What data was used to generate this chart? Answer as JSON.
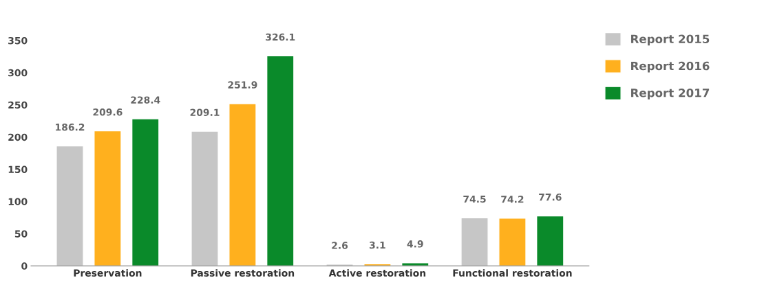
{
  "chart_data": {
    "type": "bar",
    "categories": [
      "Preservation",
      "Passive restoration",
      "Active restoration",
      "Functional restoration"
    ],
    "series": [
      {
        "name": "Report 2015",
        "color": "#c6c6c6",
        "values": [
          186.2,
          209.1,
          2.6,
          74.5
        ]
      },
      {
        "name": "Report 2016",
        "color": "#ffb01e",
        "values": [
          209.6,
          251.9,
          3.1,
          74.2
        ]
      },
      {
        "name": "Report 2017",
        "color": "#0a8a2a",
        "values": [
          228.4,
          326.1,
          4.9,
          77.6
        ]
      }
    ],
    "ylim": [
      0,
      350
    ],
    "yticks": [
      0,
      50,
      100,
      150,
      200,
      250,
      300,
      350
    ],
    "data_labels": true,
    "grid": false,
    "legend": "top right"
  }
}
